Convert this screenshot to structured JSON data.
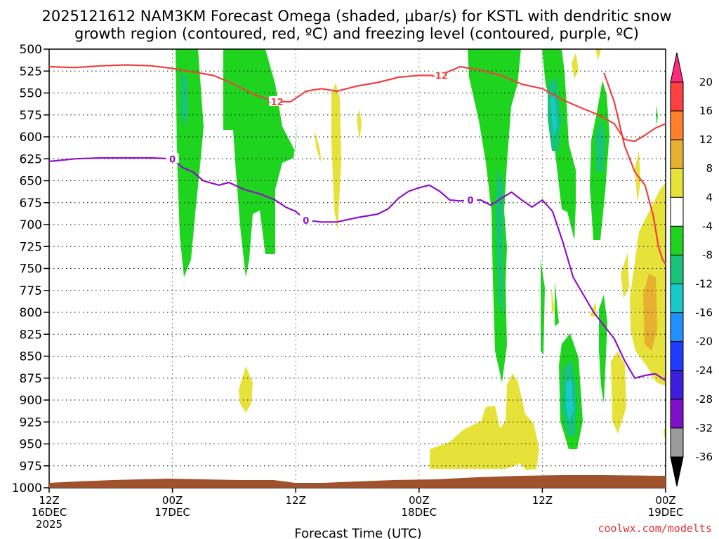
{
  "title_line1": "2025121612 NAM3KM Forecast Omega (shaded, μbar/s) for KSTL with dendritic snow",
  "title_line2": "growth region (contoured, red, ºC) and freezing level (contoured, purple, ºC)",
  "xlabel": "Forecast Time (UTC)",
  "credit": "coolwx.com/modelts",
  "chart_data": {
    "type": "area",
    "xlabel": "Forecast Time (UTC)",
    "ylabel": "",
    "x_range_hours": [
      0,
      60
    ],
    "y_range_mb": [
      500,
      1000
    ],
    "y_ticks": [
      500,
      525,
      550,
      575,
      600,
      625,
      650,
      675,
      700,
      725,
      750,
      775,
      800,
      825,
      850,
      875,
      900,
      925,
      950,
      975,
      1000
    ],
    "x_ticks": [
      {
        "hour": 0,
        "line1": "12Z",
        "line2": "16DEC",
        "line3": "2025"
      },
      {
        "hour": 12,
        "line1": "00Z",
        "line2": "17DEC",
        "line3": ""
      },
      {
        "hour": 24,
        "line1": "12Z",
        "line2": "",
        "line3": ""
      },
      {
        "hour": 36,
        "line1": "00Z",
        "line2": "18DEC",
        "line3": ""
      },
      {
        "hour": 48,
        "line1": "12Z",
        "line2": "",
        "line3": ""
      },
      {
        "hour": 60,
        "line1": "00Z",
        "line2": "19DEC",
        "line3": ""
      }
    ],
    "grid": true,
    "colorbar": {
      "levels": [
        20,
        16,
        12,
        8,
        4,
        -4,
        -8,
        -12,
        -16,
        -20,
        -24,
        -28,
        -32,
        -36
      ],
      "colors": [
        "#ff2a80",
        "#ff4040",
        "#ff7f2a",
        "#e8b030",
        "#e6e23a",
        "#ffffff",
        "#1ed41e",
        "#19c27a",
        "#17c9c9",
        "#1e90ff",
        "#1e3cff",
        "#3c1edc",
        "#7d0fc8",
        "#9b9b9b",
        "#000000"
      ]
    },
    "series": [
      {
        "name": "-12",
        "color": "#f04040",
        "label": "-12",
        "points": [
          [
            0,
            520
          ],
          [
            2.5,
            521
          ],
          [
            5,
            519
          ],
          [
            7.5,
            518
          ],
          [
            10,
            519
          ],
          [
            12,
            522
          ],
          [
            14,
            526
          ],
          [
            16,
            530
          ],
          [
            18,
            540
          ],
          [
            20,
            552
          ],
          [
            22,
            560
          ],
          [
            23.5,
            560
          ],
          [
            25,
            548
          ],
          [
            26.5,
            545
          ],
          [
            28,
            548
          ],
          [
            30,
            542
          ],
          [
            32,
            538
          ],
          [
            34,
            532
          ],
          [
            36,
            530
          ],
          [
            38,
            530
          ],
          [
            40,
            520
          ],
          [
            42,
            524
          ],
          [
            44,
            530
          ],
          [
            46,
            540
          ],
          [
            48,
            545
          ],
          [
            50,
            558
          ],
          [
            52,
            568
          ],
          [
            53.5,
            575
          ],
          [
            55,
            585
          ],
          [
            56,
            603
          ],
          [
            57,
            605
          ],
          [
            58,
            598
          ],
          [
            59,
            590
          ],
          [
            60,
            585
          ]
        ]
      },
      {
        "name": "-12",
        "color": "#f04040",
        "label": "-12",
        "points": [
          [
            54,
            527
          ],
          [
            55,
            560
          ],
          [
            56,
            610
          ],
          [
            57,
            640
          ],
          [
            58,
            655
          ],
          [
            58.8,
            690
          ],
          [
            59.3,
            725
          ],
          [
            59.7,
            740
          ],
          [
            60,
            745
          ]
        ]
      },
      {
        "name": "0",
        "color": "#9010c8",
        "label": "0",
        "points": [
          [
            0,
            628
          ],
          [
            2.5,
            625
          ],
          [
            5,
            624
          ],
          [
            7.5,
            624
          ],
          [
            10,
            624
          ],
          [
            12,
            625
          ],
          [
            13,
            635
          ],
          [
            14,
            640
          ],
          [
            15,
            650
          ],
          [
            16.5,
            655
          ],
          [
            17.5,
            652
          ],
          [
            19,
            660
          ],
          [
            20.5,
            665
          ],
          [
            22,
            672
          ],
          [
            23,
            680
          ],
          [
            24,
            685
          ],
          [
            25,
            695
          ],
          [
            26.5,
            697
          ],
          [
            28,
            697
          ],
          [
            30,
            692
          ],
          [
            32,
            688
          ],
          [
            33,
            682
          ],
          [
            34,
            670
          ],
          [
            35,
            662
          ],
          [
            36,
            658
          ],
          [
            37,
            655
          ],
          [
            38,
            662
          ],
          [
            39,
            672
          ],
          [
            40,
            673
          ],
          [
            41,
            672
          ],
          [
            42,
            672
          ],
          [
            43,
            678
          ],
          [
            44,
            670
          ],
          [
            45,
            663
          ],
          [
            46,
            672
          ],
          [
            47,
            680
          ],
          [
            48,
            672
          ],
          [
            49,
            685
          ],
          [
            50,
            720
          ],
          [
            51,
            760
          ],
          [
            52,
            780
          ],
          [
            53,
            800
          ],
          [
            54,
            815
          ],
          [
            55,
            830
          ],
          [
            56,
            855
          ],
          [
            57,
            875
          ],
          [
            58,
            872
          ],
          [
            59,
            870
          ],
          [
            60,
            878
          ]
        ]
      }
    ]
  }
}
